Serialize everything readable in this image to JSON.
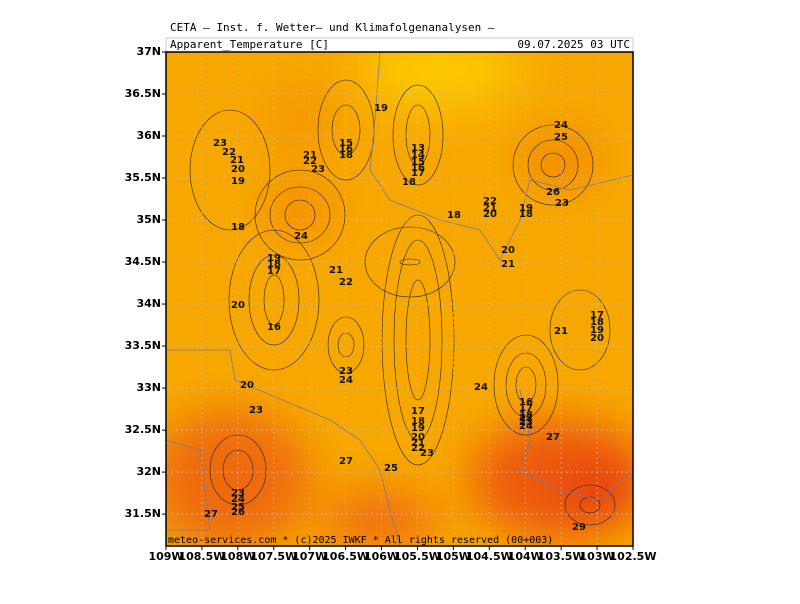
{
  "header": {
    "title": "CETA — Inst. f. Wetter— und Klimafolgenanalysen —",
    "variable": "Apparent_Temperature [C]",
    "valid_time": "09.07.2025 03 UTC"
  },
  "map": {
    "xlim": [
      -109,
      -102.5
    ],
    "ylim": [
      31.12,
      37
    ],
    "xticks": [
      {
        "value": -109,
        "label": "109W"
      },
      {
        "value": -108.5,
        "label": "108.5W"
      },
      {
        "value": -108,
        "label": "108W"
      },
      {
        "value": -107.5,
        "label": "107.5W"
      },
      {
        "value": -107,
        "label": "107W"
      },
      {
        "value": -106.5,
        "label": "106.5W"
      },
      {
        "value": -106,
        "label": "106W"
      },
      {
        "value": -105.5,
        "label": "105.5W"
      },
      {
        "value": -105,
        "label": "105W"
      },
      {
        "value": -104.5,
        "label": "104.5W"
      },
      {
        "value": -104,
        "label": "104W"
      },
      {
        "value": -103.5,
        "label": "103.5W"
      },
      {
        "value": -103,
        "label": "103W"
      },
      {
        "value": -102.5,
        "label": "102.5W"
      }
    ],
    "yticks": [
      {
        "value": 31.5,
        "label": "31.5N"
      },
      {
        "value": 32,
        "label": "32N"
      },
      {
        "value": 32.5,
        "label": "32.5N"
      },
      {
        "value": 33,
        "label": "33N"
      },
      {
        "value": 33.5,
        "label": "33.5N"
      },
      {
        "value": 34,
        "label": "34N"
      },
      {
        "value": 34.5,
        "label": "34.5N"
      },
      {
        "value": 35,
        "label": "35N"
      },
      {
        "value": 35.5,
        "label": "35.5N"
      },
      {
        "value": 36,
        "label": "36N"
      },
      {
        "value": 36.5,
        "label": "36.5N"
      },
      {
        "value": 37,
        "label": "37N"
      }
    ]
  },
  "footer": "meteo-services.com * (c)2025 IWKF * All rights reserved (00+003)",
  "contour_labels": [
    "19",
    "23",
    "22",
    "21",
    "20",
    "19",
    "18",
    "15",
    "16",
    "18",
    "21",
    "22",
    "23",
    "13",
    "14",
    "15",
    "16",
    "17",
    "18",
    "24",
    "25",
    "26",
    "23",
    "22",
    "21",
    "20",
    "19",
    "18",
    "18",
    "24",
    "20",
    "21",
    "19",
    "18",
    "17",
    "21",
    "22",
    "20",
    "16",
    "21",
    "17",
    "18",
    "19",
    "20",
    "23",
    "24",
    "20",
    "24",
    "23",
    "16",
    "17",
    "18",
    "22",
    "23",
    "24",
    "17",
    "18",
    "19",
    "20",
    "21",
    "22",
    "23",
    "27",
    "27",
    "25",
    "23",
    "24",
    "25",
    "26",
    "27",
    "29"
  ]
}
